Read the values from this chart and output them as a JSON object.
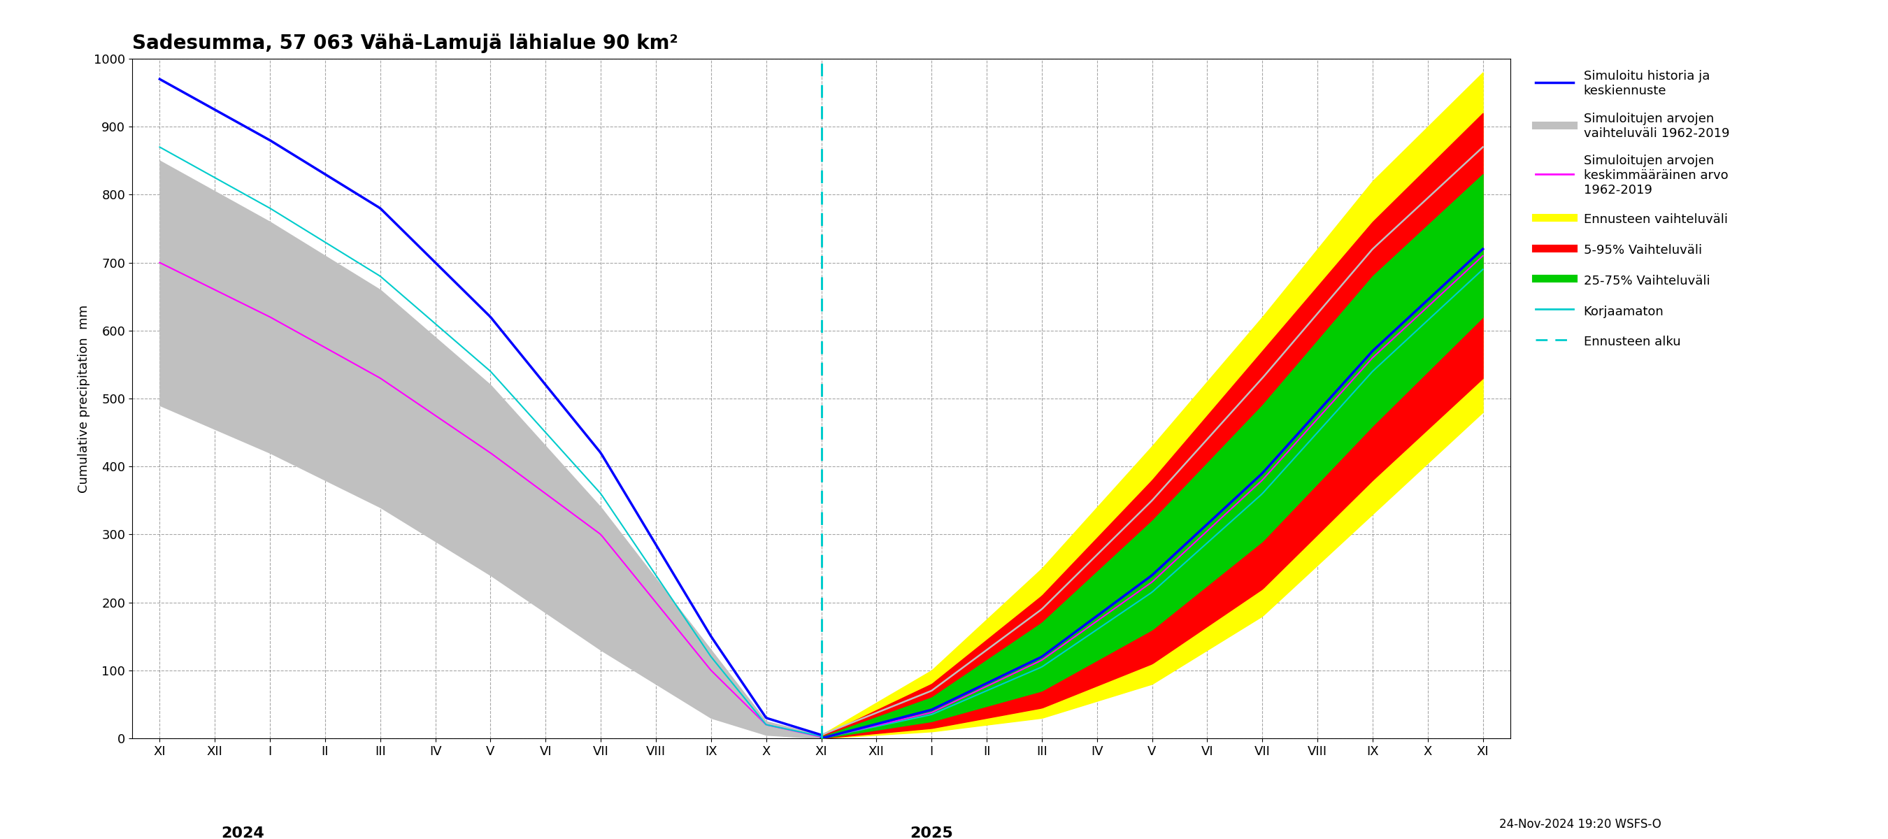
{
  "title": "Sadesumma, 57 063 Vähä-Lamujä lähialue 90 km²",
  "ylabel": "Cumulative precipitation  mm",
  "timestamp": "24-Nov-2024 19:20 WSFS-O",
  "ylim": [
    0,
    1000
  ],
  "yticks": [
    0,
    100,
    200,
    300,
    400,
    500,
    600,
    700,
    800,
    900,
    1000
  ],
  "all_months": [
    "XI",
    "XII",
    "I",
    "II",
    "III",
    "IV",
    "V",
    "VI",
    "VII",
    "VIII",
    "IX",
    "X",
    "XI",
    "XII",
    "I",
    "II",
    "III",
    "IV",
    "V",
    "VI",
    "VII",
    "VIII",
    "IX",
    "X",
    "XI"
  ],
  "n_hist": 13,
  "n_fore": 12,
  "hist_blue_x": [
    0,
    2,
    4,
    6,
    8,
    10,
    11,
    12
  ],
  "hist_blue_y": [
    970,
    880,
    780,
    620,
    420,
    150,
    30,
    5
  ],
  "hist_band_upper_x": [
    0,
    2,
    4,
    6,
    8,
    10,
    11,
    12
  ],
  "hist_band_upper_y": [
    850,
    760,
    660,
    520,
    340,
    130,
    25,
    5
  ],
  "hist_band_lower_x": [
    0,
    2,
    4,
    6,
    8,
    10,
    11,
    12
  ],
  "hist_band_lower_y": [
    490,
    420,
    340,
    240,
    130,
    30,
    5,
    0
  ],
  "hist_cyan_x": [
    0,
    2,
    4,
    6,
    8,
    10,
    11,
    12
  ],
  "hist_cyan_y": [
    870,
    780,
    680,
    540,
    360,
    120,
    20,
    3
  ],
  "hist_magenta_x": [
    0,
    2,
    4,
    6,
    8,
    10,
    11,
    12
  ],
  "hist_magenta_y": [
    700,
    620,
    530,
    420,
    300,
    100,
    20,
    2
  ],
  "fore_yellow_upper_x": [
    0,
    2,
    4,
    6,
    8,
    10,
    12
  ],
  "fore_yellow_upper_y": [
    5,
    100,
    250,
    430,
    620,
    820,
    980
  ],
  "fore_yellow_lower_x": [
    0,
    2,
    4,
    6,
    8,
    10,
    12
  ],
  "fore_yellow_lower_y": [
    0,
    10,
    30,
    80,
    180,
    330,
    480
  ],
  "fore_red_upper_x": [
    0,
    2,
    4,
    6,
    8,
    10,
    12
  ],
  "fore_red_upper_y": [
    3,
    80,
    210,
    380,
    570,
    760,
    920
  ],
  "fore_red_lower_x": [
    0,
    2,
    4,
    6,
    8,
    10,
    12
  ],
  "fore_red_lower_y": [
    0,
    15,
    45,
    110,
    220,
    380,
    530
  ],
  "fore_green_upper_x": [
    0,
    2,
    4,
    6,
    8,
    10,
    12
  ],
  "fore_green_upper_y": [
    2,
    60,
    170,
    320,
    490,
    680,
    830
  ],
  "fore_green_lower_x": [
    0,
    2,
    4,
    6,
    8,
    10,
    12
  ],
  "fore_green_lower_y": [
    0,
    25,
    70,
    160,
    290,
    460,
    620
  ],
  "fore_blue_x": [
    0,
    2,
    4,
    6,
    8,
    10,
    12
  ],
  "fore_blue_y": [
    0,
    42,
    120,
    240,
    390,
    570,
    720
  ],
  "fore_magenta_x": [
    0,
    2,
    4,
    6,
    8,
    10,
    12
  ],
  "fore_magenta_y": [
    0,
    38,
    115,
    230,
    380,
    560,
    710
  ],
  "fore_cyan_x": [
    0,
    2,
    4,
    6,
    8,
    10,
    12
  ],
  "fore_cyan_y": [
    0,
    35,
    105,
    215,
    360,
    540,
    690
  ],
  "fore_gray_x": [
    0,
    2,
    4,
    6,
    8,
    10,
    12
  ],
  "fore_gray_y": [
    5,
    70,
    190,
    350,
    530,
    720,
    870
  ],
  "color_blue": "#0000FF",
  "color_gray": "#C0C0C0",
  "color_magenta": "#FF00FF",
  "color_yellow": "#FFFF00",
  "color_red": "#FF0000",
  "color_green": "#00CC00",
  "color_cyan": "#00CCCC",
  "legend_labels": [
    "Simuloitu historia ja\nkeskiennuste",
    "Simuloitujen arvojen\nvaihteluväli 1962-2019",
    "Simuloitujen arvojen\nkeskimmääräinen arvo\n1962-2019",
    "Ennusteen vaihteluväli",
    "5-95% Vaihteluväli",
    "25-75% Vaihteluväli",
    "Korjaamaton",
    "Ennusteen alku"
  ]
}
